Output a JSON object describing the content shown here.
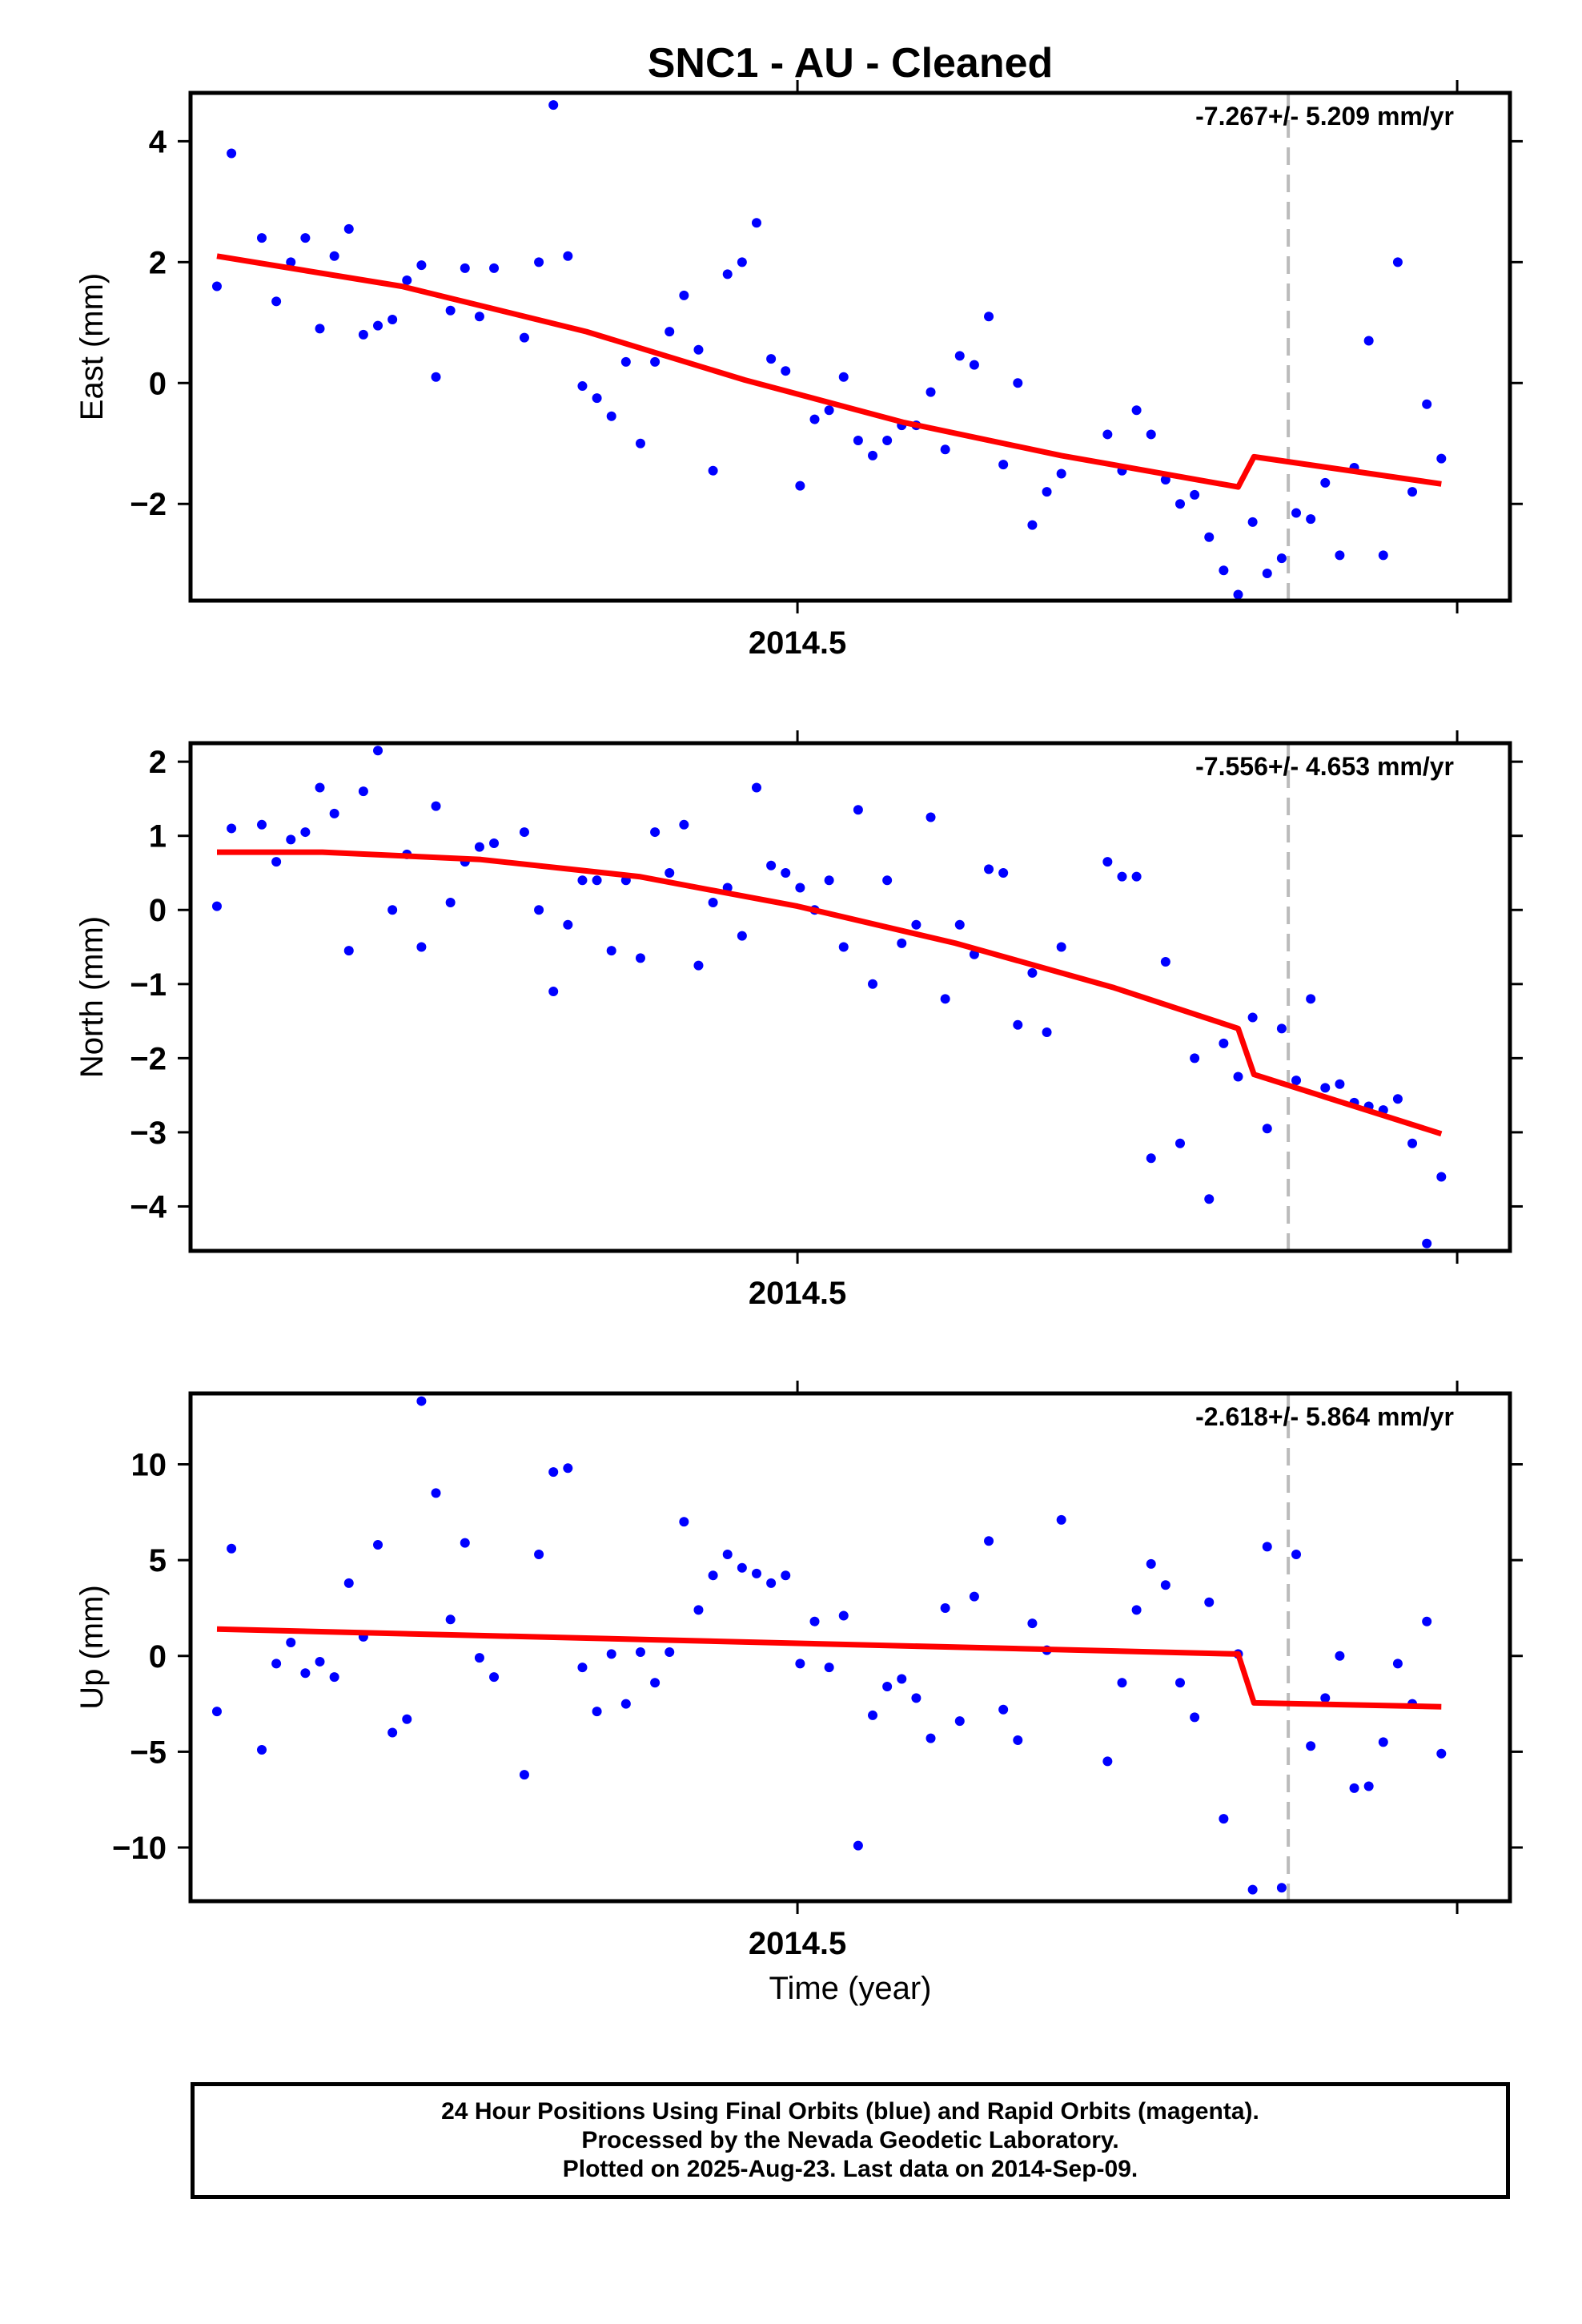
{
  "chart_data": [
    {
      "type": "scatter",
      "title": "SNC1  - AU - Cleaned",
      "xlabel": "",
      "ylabel": "East (mm)",
      "xlim": [
        2014.27,
        2014.77
      ],
      "ylim": [
        -3.6,
        4.8
      ],
      "x_tick_labels": [
        "2014.5"
      ],
      "y_ticks": [
        -2,
        0,
        2,
        4
      ],
      "y_tick_labels": [
        "−2",
        "0",
        "2",
        "4"
      ],
      "annotation": "-7.267+/- 5.209 mm/yr",
      "offset_x": 2014.686,
      "points": [
        [
          2014.28,
          1.6
        ],
        [
          2014.2855,
          3.8
        ],
        [
          2014.297,
          2.4
        ],
        [
          2014.3025,
          1.35
        ],
        [
          2014.308,
          2.0
        ],
        [
          2014.3135,
          2.4
        ],
        [
          2014.319,
          0.9
        ],
        [
          2014.3245,
          2.1
        ],
        [
          2014.33,
          2.55
        ],
        [
          2014.3355,
          0.8
        ],
        [
          2014.341,
          0.95
        ],
        [
          2014.3465,
          1.05
        ],
        [
          2014.352,
          1.7
        ],
        [
          2014.3575,
          1.95
        ],
        [
          2014.363,
          0.1
        ],
        [
          2014.3685,
          1.2
        ],
        [
          2014.374,
          1.9
        ],
        [
          2014.3795,
          1.1
        ],
        [
          2014.385,
          1.9
        ],
        [
          2014.3965,
          0.75
        ],
        [
          2014.402,
          2.0
        ],
        [
          2014.4075,
          4.6
        ],
        [
          2014.413,
          2.1
        ],
        [
          2014.4185,
          -0.05
        ],
        [
          2014.424,
          -0.25
        ],
        [
          2014.4295,
          -0.55
        ],
        [
          2014.435,
          0.35
        ],
        [
          2014.4405,
          -1.0
        ],
        [
          2014.446,
          0.35
        ],
        [
          2014.4515,
          0.85
        ],
        [
          2014.457,
          1.45
        ],
        [
          2014.4625,
          0.55
        ],
        [
          2014.468,
          -1.45
        ],
        [
          2014.4735,
          1.8
        ],
        [
          2014.479,
          2.0
        ],
        [
          2014.4845,
          2.65
        ],
        [
          2014.49,
          0.4
        ],
        [
          2014.4955,
          0.2
        ],
        [
          2014.501,
          -1.7
        ],
        [
          2014.5065,
          -0.6
        ],
        [
          2014.512,
          -0.45
        ],
        [
          2014.5175,
          0.1
        ],
        [
          2014.523,
          -0.95
        ],
        [
          2014.5285,
          -1.2
        ],
        [
          2014.534,
          -0.95
        ],
        [
          2014.5395,
          -0.7
        ],
        [
          2014.545,
          -0.7
        ],
        [
          2014.5505,
          -0.15
        ],
        [
          2014.556,
          -1.1
        ],
        [
          2014.5615,
          0.45
        ],
        [
          2014.567,
          0.3
        ],
        [
          2014.5725,
          1.1
        ],
        [
          2014.578,
          -1.35
        ],
        [
          2014.5835,
          0.0
        ],
        [
          2014.589,
          -2.35
        ],
        [
          2014.5945,
          -1.8
        ],
        [
          2014.6,
          -1.5
        ],
        [
          2014.6175,
          -0.85
        ],
        [
          2014.623,
          -1.45
        ],
        [
          2014.6285,
          -0.45
        ],
        [
          2014.634,
          -0.85
        ],
        [
          2014.6395,
          -1.6
        ],
        [
          2014.645,
          -2.0
        ],
        [
          2014.6505,
          -1.85
        ],
        [
          2014.656,
          -2.55
        ],
        [
          2014.6615,
          -3.1
        ],
        [
          2014.667,
          -3.5
        ],
        [
          2014.6725,
          -2.3
        ],
        [
          2014.678,
          -3.15
        ],
        [
          2014.6835,
          -2.9
        ],
        [
          2014.689,
          -2.15
        ],
        [
          2014.6945,
          -2.25
        ],
        [
          2014.7,
          -1.65
        ],
        [
          2014.7055,
          -2.85
        ],
        [
          2014.711,
          -1.4
        ],
        [
          2014.7165,
          0.7
        ],
        [
          2014.722,
          -2.85
        ],
        [
          2014.7275,
          2.0
        ],
        [
          2014.733,
          -1.8
        ],
        [
          2014.7385,
          -0.35
        ],
        [
          2014.744,
          -1.25
        ]
      ],
      "model_line": [
        [
          2014.28,
          2.1
        ],
        [
          2014.35,
          1.6
        ],
        [
          2014.42,
          0.85
        ],
        [
          2014.48,
          0.05
        ],
        [
          2014.54,
          -0.65
        ],
        [
          2014.6,
          -1.2
        ],
        [
          2014.667,
          -1.72
        ],
        [
          2014.673,
          -1.22
        ],
        [
          2014.744,
          -1.67
        ]
      ]
    },
    {
      "type": "scatter",
      "title": "",
      "xlabel": "",
      "ylabel": "North (mm)",
      "xlim": [
        2014.27,
        2014.77
      ],
      "ylim": [
        -4.6,
        2.25
      ],
      "x_tick_labels": [
        "2014.5"
      ],
      "y_ticks": [
        -4,
        -3,
        -2,
        -1,
        0,
        1,
        2
      ],
      "y_tick_labels": [
        "−4",
        "−3",
        "−2",
        "−1",
        "0",
        "1",
        "2"
      ],
      "annotation": "-7.556+/- 4.653 mm/yr",
      "offset_x": 2014.686,
      "points": [
        [
          2014.28,
          0.05
        ],
        [
          2014.2855,
          1.1
        ],
        [
          2014.297,
          1.15
        ],
        [
          2014.3025,
          0.65
        ],
        [
          2014.308,
          0.95
        ],
        [
          2014.3135,
          1.05
        ],
        [
          2014.319,
          1.65
        ],
        [
          2014.3245,
          1.3
        ],
        [
          2014.33,
          -0.55
        ],
        [
          2014.3355,
          1.6
        ],
        [
          2014.341,
          2.15
        ],
        [
          2014.3465,
          0.0
        ],
        [
          2014.352,
          0.75
        ],
        [
          2014.3575,
          -0.5
        ],
        [
          2014.363,
          1.4
        ],
        [
          2014.3685,
          0.1
        ],
        [
          2014.374,
          0.65
        ],
        [
          2014.3795,
          0.85
        ],
        [
          2014.385,
          0.9
        ],
        [
          2014.3965,
          1.05
        ],
        [
          2014.402,
          0.0
        ],
        [
          2014.4075,
          -1.1
        ],
        [
          2014.413,
          -0.2
        ],
        [
          2014.4185,
          0.4
        ],
        [
          2014.424,
          0.4
        ],
        [
          2014.4295,
          -0.55
        ],
        [
          2014.435,
          0.4
        ],
        [
          2014.4405,
          -0.65
        ],
        [
          2014.446,
          1.05
        ],
        [
          2014.4515,
          0.5
        ],
        [
          2014.457,
          1.15
        ],
        [
          2014.4625,
          -0.75
        ],
        [
          2014.468,
          0.1
        ],
        [
          2014.4735,
          0.3
        ],
        [
          2014.479,
          -0.35
        ],
        [
          2014.4845,
          1.65
        ],
        [
          2014.49,
          0.6
        ],
        [
          2014.4955,
          0.5
        ],
        [
          2014.501,
          0.3
        ],
        [
          2014.5065,
          0.0
        ],
        [
          2014.512,
          0.4
        ],
        [
          2014.5175,
          -0.5
        ],
        [
          2014.523,
          1.35
        ],
        [
          2014.5285,
          -1.0
        ],
        [
          2014.534,
          0.4
        ],
        [
          2014.5395,
          -0.45
        ],
        [
          2014.545,
          -0.2
        ],
        [
          2014.5505,
          1.25
        ],
        [
          2014.556,
          -1.2
        ],
        [
          2014.5615,
          -0.2
        ],
        [
          2014.567,
          -0.6
        ],
        [
          2014.5725,
          0.55
        ],
        [
          2014.578,
          0.5
        ],
        [
          2014.5835,
          -1.55
        ],
        [
          2014.589,
          -0.85
        ],
        [
          2014.5945,
          -1.65
        ],
        [
          2014.6,
          -0.5
        ],
        [
          2014.6175,
          0.65
        ],
        [
          2014.623,
          0.45
        ],
        [
          2014.6285,
          0.45
        ],
        [
          2014.634,
          -3.35
        ],
        [
          2014.6395,
          -0.7
        ],
        [
          2014.645,
          -3.15
        ],
        [
          2014.6505,
          -2.0
        ],
        [
          2014.656,
          -3.9
        ],
        [
          2014.6615,
          -1.8
        ],
        [
          2014.667,
          -2.25
        ],
        [
          2014.6725,
          -1.45
        ],
        [
          2014.678,
          -2.95
        ],
        [
          2014.6835,
          -1.6
        ],
        [
          2014.689,
          -2.3
        ],
        [
          2014.6945,
          -1.2
        ],
        [
          2014.7,
          -2.4
        ],
        [
          2014.7055,
          -2.35
        ],
        [
          2014.711,
          -2.6
        ],
        [
          2014.7165,
          -2.65
        ],
        [
          2014.722,
          -2.7
        ],
        [
          2014.7275,
          -2.55
        ],
        [
          2014.733,
          -3.15
        ],
        [
          2014.7385,
          -4.5
        ],
        [
          2014.744,
          -3.6
        ]
      ],
      "model_line": [
        [
          2014.28,
          0.78
        ],
        [
          2014.32,
          0.78
        ],
        [
          2014.38,
          0.68
        ],
        [
          2014.44,
          0.45
        ],
        [
          2014.5,
          0.05
        ],
        [
          2014.56,
          -0.45
        ],
        [
          2014.62,
          -1.05
        ],
        [
          2014.667,
          -1.6
        ],
        [
          2014.673,
          -2.22
        ],
        [
          2014.744,
          -3.02
        ]
      ]
    },
    {
      "type": "scatter",
      "title": "",
      "xlabel": "Time (year)",
      "ylabel": "Up (mm)",
      "xlim": [
        2014.27,
        2014.77
      ],
      "ylim": [
        -12.8,
        13.7
      ],
      "x_tick_labels": [
        "2014.5"
      ],
      "y_ticks": [
        -10,
        -5,
        0,
        5,
        10
      ],
      "y_tick_labels": [
        "−10",
        "−5",
        "0",
        "5",
        "10"
      ],
      "annotation": "-2.618+/- 5.864 mm/yr",
      "offset_x": 2014.686,
      "points": [
        [
          2014.28,
          -2.9
        ],
        [
          2014.2855,
          5.6
        ],
        [
          2014.297,
          -4.9
        ],
        [
          2014.3025,
          -0.4
        ],
        [
          2014.308,
          0.7
        ],
        [
          2014.3135,
          -0.9
        ],
        [
          2014.319,
          -0.3
        ],
        [
          2014.3245,
          -1.1
        ],
        [
          2014.33,
          3.8
        ],
        [
          2014.3355,
          1.0
        ],
        [
          2014.341,
          5.8
        ],
        [
          2014.3465,
          -4.0
        ],
        [
          2014.352,
          -3.3
        ],
        [
          2014.3575,
          13.3
        ],
        [
          2014.363,
          8.5
        ],
        [
          2014.3685,
          1.9
        ],
        [
          2014.374,
          5.9
        ],
        [
          2014.3795,
          -0.1
        ],
        [
          2014.385,
          -1.1
        ],
        [
          2014.3965,
          -6.2
        ],
        [
          2014.402,
          5.3
        ],
        [
          2014.4075,
          9.6
        ],
        [
          2014.413,
          9.8
        ],
        [
          2014.4185,
          -0.6
        ],
        [
          2014.424,
          -2.9
        ],
        [
          2014.4295,
          0.1
        ],
        [
          2014.435,
          -2.5
        ],
        [
          2014.4405,
          0.2
        ],
        [
          2014.446,
          -1.4
        ],
        [
          2014.4515,
          0.2
        ],
        [
          2014.457,
          7.0
        ],
        [
          2014.4625,
          2.4
        ],
        [
          2014.468,
          4.2
        ],
        [
          2014.4735,
          5.3
        ],
        [
          2014.479,
          4.6
        ],
        [
          2014.4845,
          4.3
        ],
        [
          2014.49,
          3.8
        ],
        [
          2014.4955,
          4.2
        ],
        [
          2014.501,
          -0.4
        ],
        [
          2014.5065,
          1.8
        ],
        [
          2014.512,
          -0.6
        ],
        [
          2014.5175,
          2.1
        ],
        [
          2014.523,
          -9.9
        ],
        [
          2014.5285,
          -3.1
        ],
        [
          2014.534,
          -1.6
        ],
        [
          2014.5395,
          -1.2
        ],
        [
          2014.545,
          -2.2
        ],
        [
          2014.5505,
          -4.3
        ],
        [
          2014.556,
          2.5
        ],
        [
          2014.5615,
          -3.4
        ],
        [
          2014.567,
          3.1
        ],
        [
          2014.5725,
          6.0
        ],
        [
          2014.578,
          -2.8
        ],
        [
          2014.5835,
          -4.4
        ],
        [
          2014.589,
          1.7
        ],
        [
          2014.5945,
          0.3
        ],
        [
          2014.6,
          7.1
        ],
        [
          2014.6175,
          -5.5
        ],
        [
          2014.623,
          -1.4
        ],
        [
          2014.6285,
          2.4
        ],
        [
          2014.634,
          4.8
        ],
        [
          2014.6395,
          3.7
        ],
        [
          2014.645,
          -1.4
        ],
        [
          2014.6505,
          -3.2
        ],
        [
          2014.656,
          2.8
        ],
        [
          2014.6615,
          -8.5
        ],
        [
          2014.667,
          0.1
        ],
        [
          2014.6725,
          -12.2
        ],
        [
          2014.678,
          5.7
        ],
        [
          2014.6835,
          -12.1
        ],
        [
          2014.689,
          5.3
        ],
        [
          2014.6945,
          -4.7
        ],
        [
          2014.7,
          -2.2
        ],
        [
          2014.7055,
          0.0
        ],
        [
          2014.711,
          -6.9
        ],
        [
          2014.7165,
          -6.8
        ],
        [
          2014.722,
          -4.5
        ],
        [
          2014.7275,
          -0.4
        ],
        [
          2014.733,
          -2.5
        ],
        [
          2014.7385,
          1.8
        ],
        [
          2014.744,
          -5.1
        ]
      ],
      "model_line": [
        [
          2014.28,
          1.4
        ],
        [
          2014.667,
          0.1
        ],
        [
          2014.673,
          -2.45
        ],
        [
          2014.744,
          -2.65
        ]
      ]
    }
  ],
  "footer": {
    "line1": "24 Hour Positions Using Final Orbits (blue) and Rapid Orbits (magenta).",
    "line2": "Processed by the Nevada Geodetic Laboratory.",
    "line3": "Plotted on 2025-Aug-23. Last data on 2014-Sep-09."
  },
  "colors": {
    "points": "#0000ff",
    "model": "#ff0000",
    "offset_line": "#bbbbbb",
    "frame": "#000000"
  }
}
